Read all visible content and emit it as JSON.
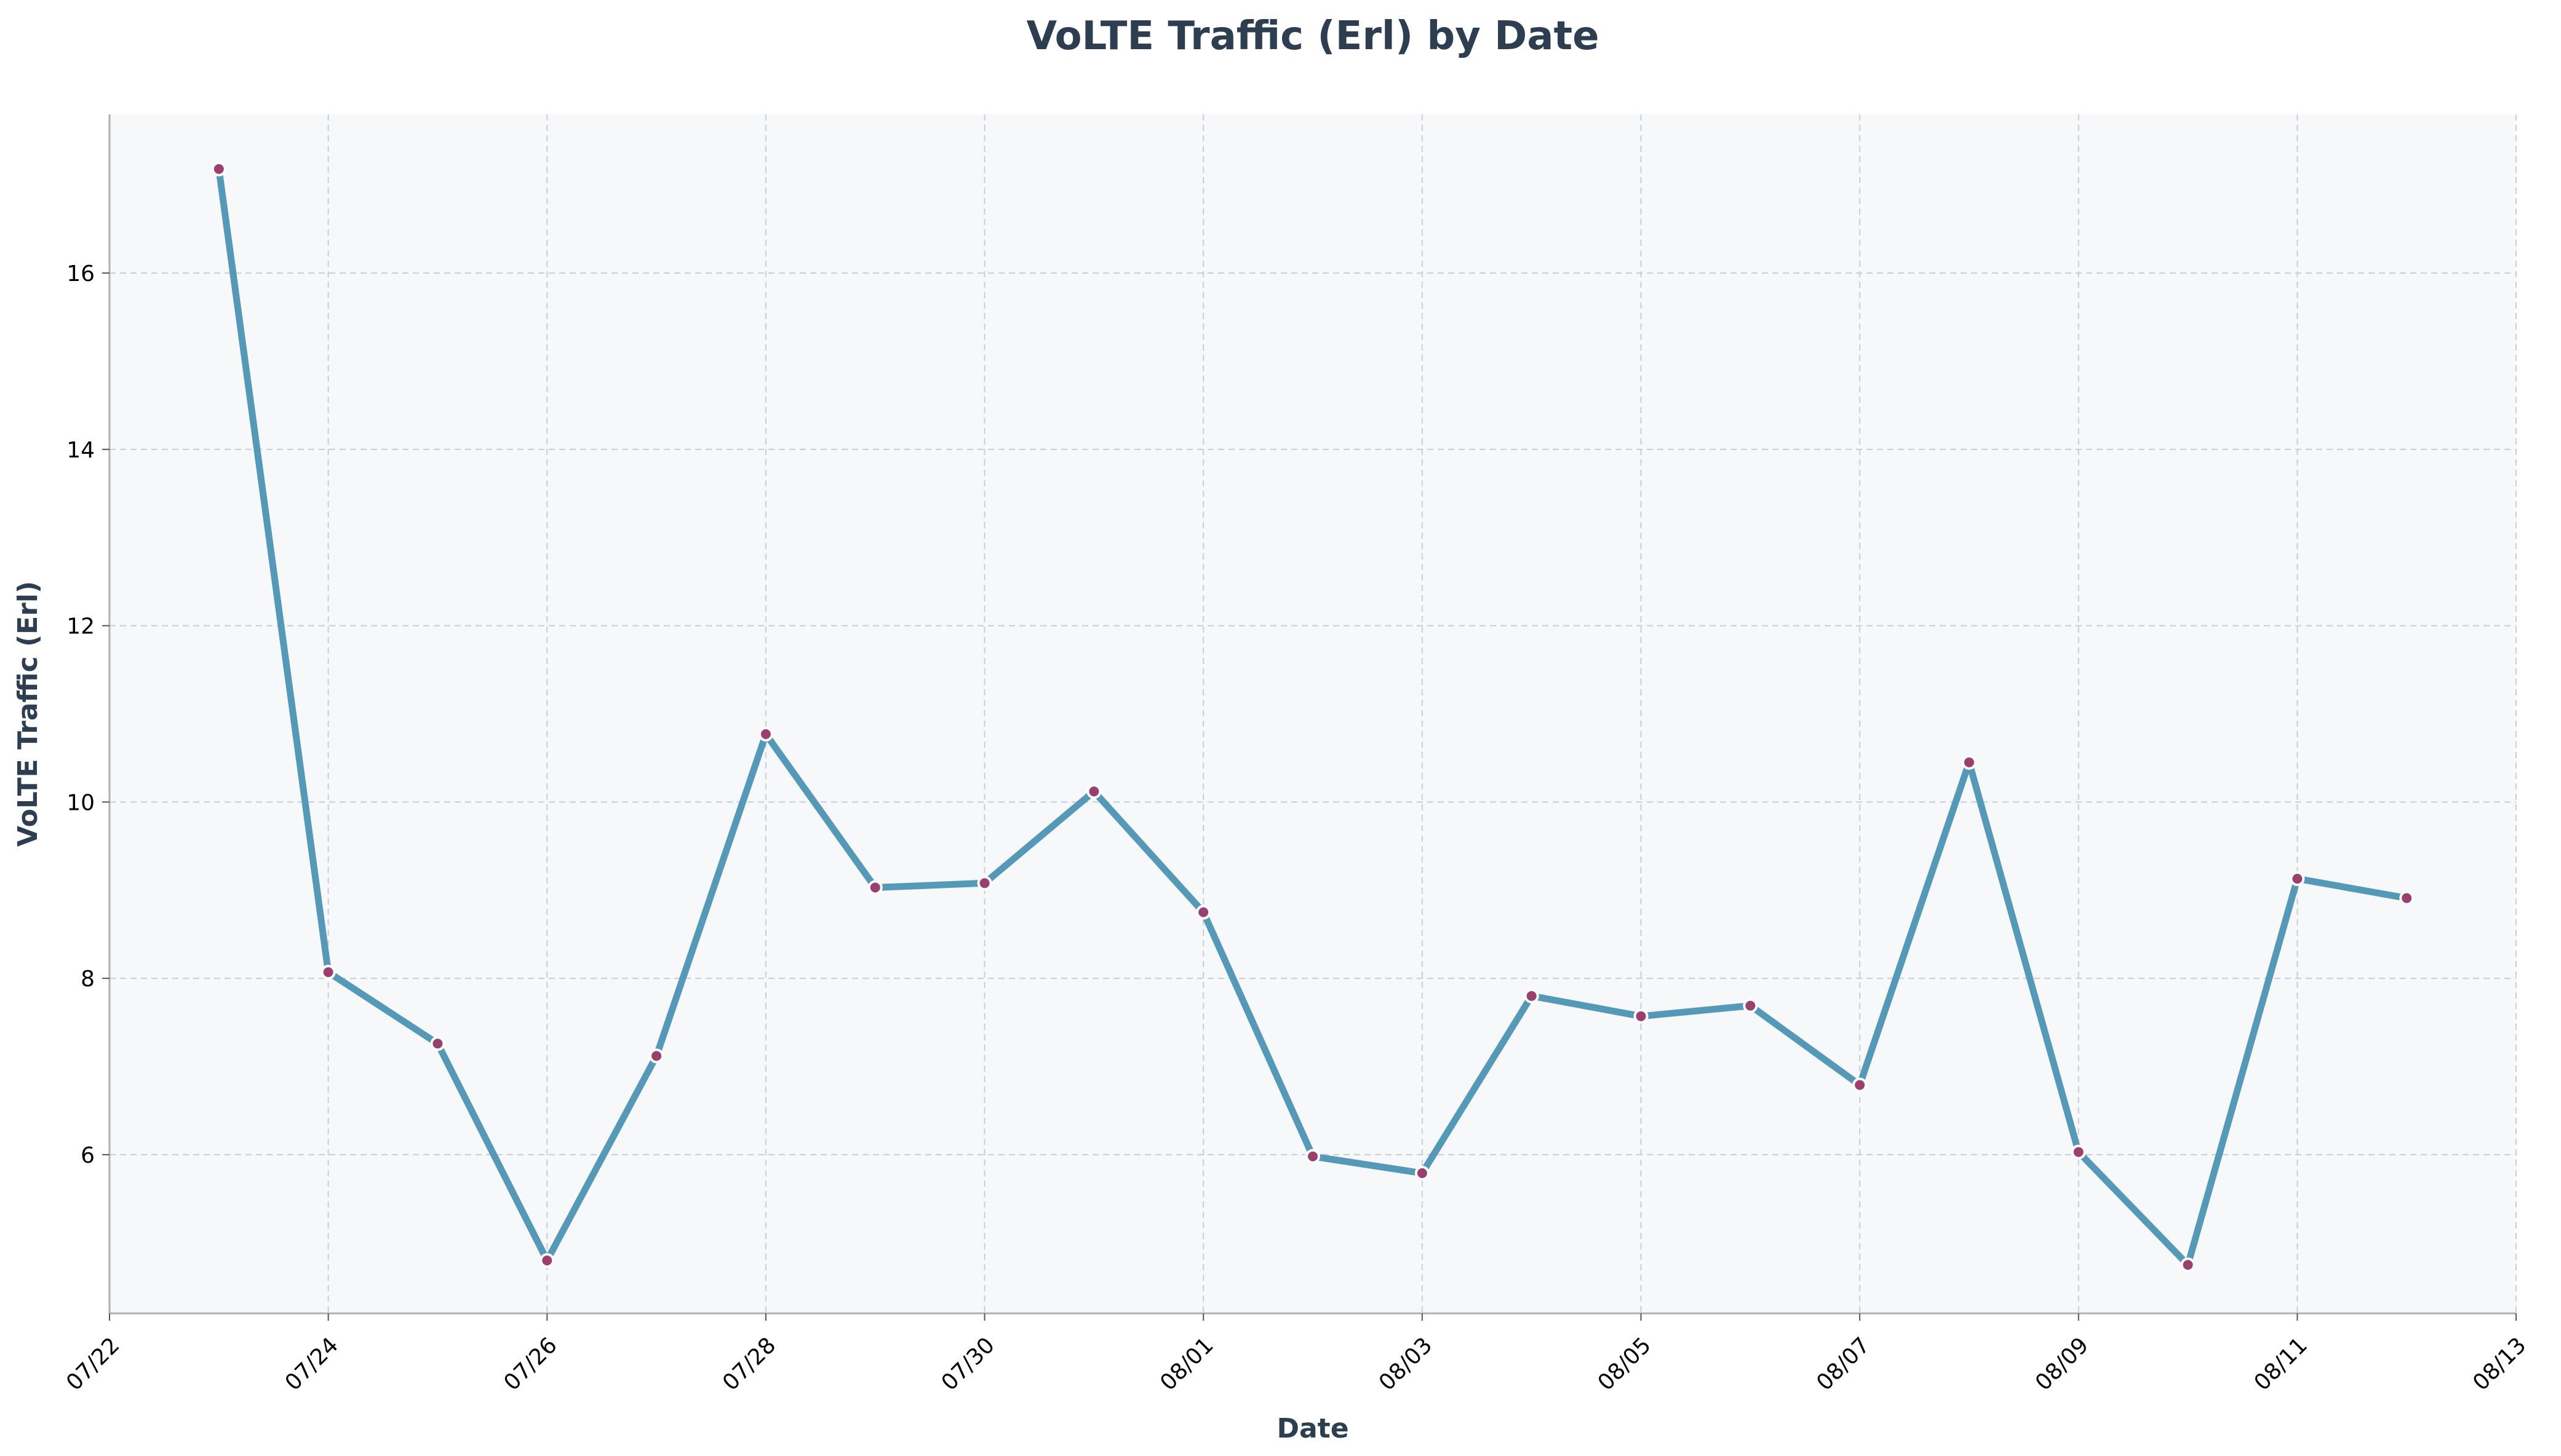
{
  "chart_data": {
    "type": "line",
    "title": "VoLTE Traffic (Erl) by Date",
    "xlabel": "Date",
    "ylabel": "VoLTE Traffic (Erl)",
    "x_ticks": [
      "07/22",
      "07/24",
      "07/26",
      "07/28",
      "07/30",
      "08/01",
      "08/03",
      "08/05",
      "08/07",
      "08/09",
      "08/11",
      "08/13"
    ],
    "y_ticks": [
      6,
      8,
      10,
      12,
      14,
      16
    ],
    "xlim": [
      "07/22",
      "08/13"
    ],
    "ylim": [
      4.2,
      17.8
    ],
    "grid": true,
    "colors": {
      "line": "#5499b8",
      "marker": "#9b3f6e",
      "marker_edge": "#ffffff",
      "plot_bg": "#f6f8fa",
      "title": "#2c3e50"
    },
    "series": [
      {
        "x": [
          "07/23",
          "07/24",
          "07/25",
          "07/26",
          "07/27",
          "07/28",
          "07/29",
          "07/30",
          "07/31",
          "08/01",
          "08/02",
          "08/03",
          "08/04",
          "08/05",
          "08/06",
          "08/07",
          "08/08",
          "08/09",
          "08/10",
          "08/11",
          "08/12"
        ],
        "values": [
          17.18,
          8.07,
          7.26,
          4.8,
          7.12,
          10.77,
          9.03,
          9.08,
          10.12,
          8.75,
          5.98,
          5.79,
          7.8,
          7.57,
          7.69,
          6.79,
          10.45,
          6.03,
          4.75,
          9.13,
          8.91
        ]
      }
    ]
  }
}
